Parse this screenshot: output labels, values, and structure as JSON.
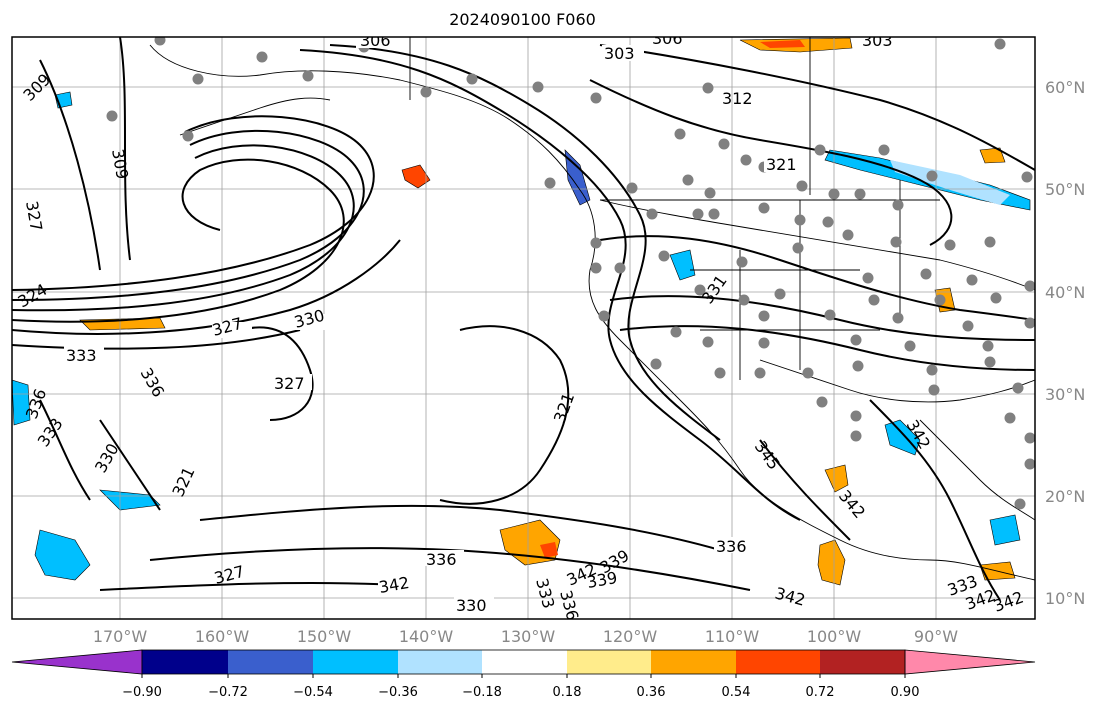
{
  "title": "2024090100 F060",
  "map": {
    "lat_labels": [
      "60°N",
      "50°N",
      "40°N",
      "30°N",
      "20°N",
      "10°N"
    ],
    "lon_labels": [
      "170°W",
      "160°W",
      "150°W",
      "140°W",
      "130°W",
      "120°W",
      "110°W",
      "100°W",
      "90°W"
    ],
    "contour_labels": [
      "306",
      "303",
      "306",
      "303",
      "309",
      "309",
      "327",
      "312",
      "321",
      "324",
      "327",
      "330",
      "333",
      "327",
      "336",
      "336",
      "333",
      "330",
      "321",
      "321",
      "331",
      "342",
      "345",
      "336",
      "342",
      "339",
      "336",
      "327",
      "342",
      "333",
      "339",
      "330",
      "342",
      "342",
      "336",
      "342",
      "333",
      "342"
    ],
    "stations": "grey-dot-markers"
  },
  "colorbar": {
    "tick_labels": [
      "−0.90",
      "−0.72",
      "−0.54",
      "−0.36",
      "−0.18",
      "0.18",
      "0.36",
      "0.54",
      "0.72",
      "0.90"
    ],
    "colors": [
      "#9932cc",
      "#00008b",
      "#3a5fcd",
      "#00bfff",
      "#b0e2ff",
      "#ffffff",
      "#ffec8b",
      "#ffa500",
      "#ff4500",
      "#b22222",
      "#ff88aa"
    ]
  }
}
